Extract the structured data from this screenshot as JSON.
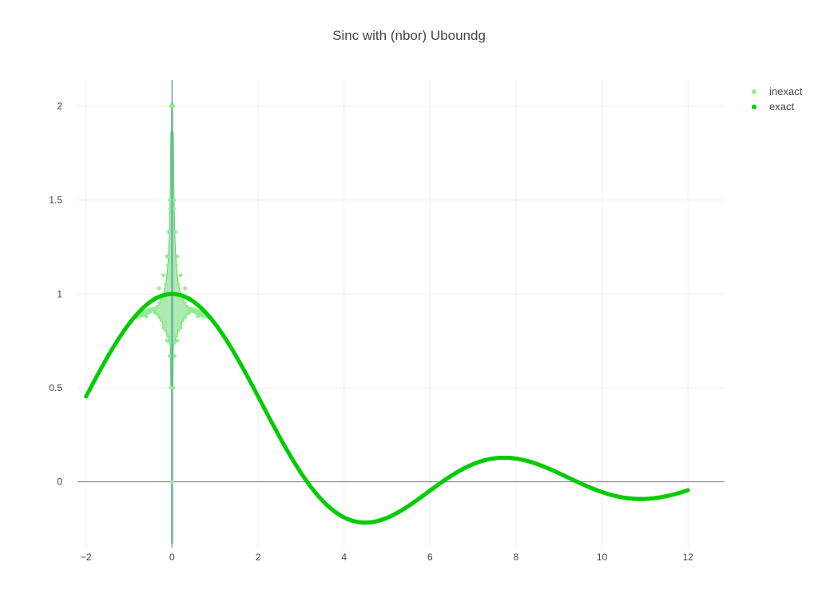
{
  "chart_data": {
    "type": "scatter",
    "title": "Sinc with (nbor) Uboundg",
    "xlabel": "",
    "ylabel": "",
    "xlim": [
      -2.2,
      12.85
    ],
    "ylim": [
      -0.35,
      2.14
    ],
    "x_ticks": [
      -2,
      0,
      2,
      4,
      6,
      8,
      10,
      12
    ],
    "x_tick_labels": [
      "−2",
      "0",
      "2",
      "4",
      "6",
      "8",
      "10",
      "12"
    ],
    "y_ticks": [
      0,
      0.5,
      1,
      1.5,
      2
    ],
    "y_tick_labels": [
      "0",
      "0.5",
      "1",
      "1.5",
      "2"
    ],
    "grid": true,
    "legend_position": "top-right",
    "colors": {
      "inexact": "#90ee90",
      "exact": "#00cc00",
      "axis_line": "#6aa3cf",
      "band": "#5fd35f"
    },
    "series": [
      {
        "name": "inexact",
        "mode": "markers",
        "color": "#90ee90",
        "points": [
          {
            "x": -2.0,
            "y": 0.455
          },
          {
            "x": -1.5,
            "y": 0.665
          },
          {
            "x": -1.0,
            "y": 0.84
          },
          {
            "x": -0.6,
            "y": 0.94
          },
          {
            "x": -0.4,
            "y": 0.98
          },
          {
            "x": -0.3,
            "y": 1.03
          },
          {
            "x": -0.2,
            "y": 1.1
          },
          {
            "x": -0.12,
            "y": 1.2
          },
          {
            "x": -0.08,
            "y": 1.33
          },
          {
            "x": -0.05,
            "y": 1.5
          },
          {
            "x": -0.03,
            "y": 2.0
          },
          {
            "x": 0.03,
            "y": 2.0
          },
          {
            "x": 0.05,
            "y": 1.5
          },
          {
            "x": 0.08,
            "y": 1.33
          },
          {
            "x": 0.12,
            "y": 1.2
          },
          {
            "x": 0.2,
            "y": 1.1
          },
          {
            "x": 0.3,
            "y": 1.03
          },
          {
            "x": 0.4,
            "y": 0.98
          },
          {
            "x": 0.6,
            "y": 0.94
          },
          {
            "x": 1.0,
            "y": 0.84
          },
          {
            "x": -0.6,
            "y": 0.88
          },
          {
            "x": -0.4,
            "y": 0.9
          },
          {
            "x": -0.3,
            "y": 0.875
          },
          {
            "x": -0.2,
            "y": 0.82
          },
          {
            "x": -0.12,
            "y": 0.75
          },
          {
            "x": -0.06,
            "y": 0.67
          },
          {
            "x": -0.03,
            "y": 0.5
          },
          {
            "x": 0.03,
            "y": 0.5
          },
          {
            "x": 0.06,
            "y": 0.67
          },
          {
            "x": 0.12,
            "y": 0.75
          },
          {
            "x": 0.2,
            "y": 0.82
          },
          {
            "x": 0.3,
            "y": 0.875
          },
          {
            "x": 0.4,
            "y": 0.9
          },
          {
            "x": 0.6,
            "y": 0.88
          },
          {
            "x": 0.0,
            "y": 0.0
          }
        ]
      },
      {
        "name": "exact",
        "mode": "markers",
        "color": "#00cc00",
        "function": "sin(x)/x",
        "x_range": [
          -2,
          12
        ],
        "points": [
          {
            "x": -2.0,
            "y": 0.455
          },
          {
            "x": -1.0,
            "y": 0.841
          },
          {
            "x": 0.0,
            "y": 1.0
          },
          {
            "x": 1.0,
            "y": 0.841
          },
          {
            "x": 2.0,
            "y": 0.455
          },
          {
            "x": 3.0,
            "y": 0.047
          },
          {
            "x": 4.0,
            "y": -0.189
          },
          {
            "x": 4.49,
            "y": -0.217
          },
          {
            "x": 5.0,
            "y": -0.192
          },
          {
            "x": 6.0,
            "y": -0.047
          },
          {
            "x": 7.0,
            "y": 0.094
          },
          {
            "x": 7.73,
            "y": 0.128
          },
          {
            "x": 8.0,
            "y": 0.124
          },
          {
            "x": 9.0,
            "y": 0.046
          },
          {
            "x": 10.0,
            "y": -0.054
          },
          {
            "x": 10.9,
            "y": -0.091
          },
          {
            "x": 12.0,
            "y": -0.045
          }
        ]
      }
    ]
  }
}
